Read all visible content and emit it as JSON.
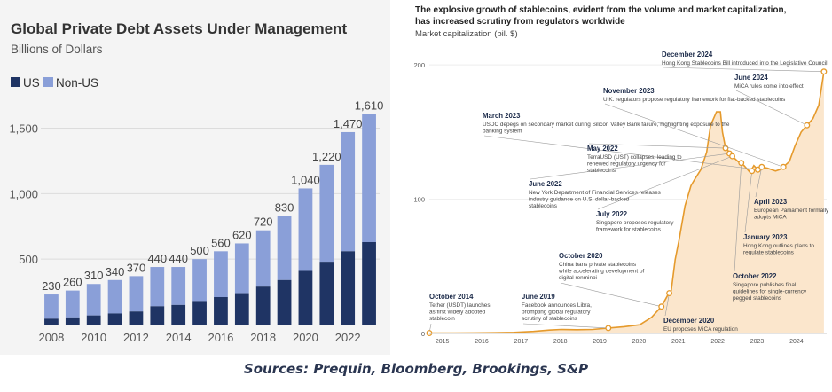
{
  "source_note": "Sources: Prequin, Bloomberg, Brookings, S&P",
  "chart_data": [
    {
      "type": "bar",
      "title": "Global Private Debt Assets Under Management",
      "subtitle": "Billions of Dollars",
      "legend": [
        "US",
        "Non-US"
      ],
      "colors": {
        "us": "#1f3464",
        "non_us": "#8a9fd8"
      },
      "categories": [
        "2008",
        "2009",
        "2010",
        "2011",
        "2012",
        "2013",
        "2014",
        "2015",
        "2016",
        "2017",
        "2018",
        "2019",
        "2020",
        "2021",
        "2022",
        "2023"
      ],
      "x_tick_labels": [
        "2008",
        "2010",
        "2012",
        "2014",
        "2016",
        "2018",
        "2020",
        "2022"
      ],
      "y_tick_labels": [
        "500",
        "1,000",
        "1,500"
      ],
      "y_ticks": [
        500,
        1000,
        1500
      ],
      "ylim": [
        0,
        1700
      ],
      "total_labels": [
        "230",
        "260",
        "310",
        "340",
        "370",
        "440",
        "440",
        "500",
        "560",
        "620",
        "720",
        "830",
        "1,040",
        "1,220",
        "1,470",
        "1,610"
      ],
      "series": [
        {
          "name": "US",
          "values": [
            45,
            55,
            70,
            85,
            100,
            140,
            150,
            180,
            210,
            240,
            290,
            340,
            410,
            480,
            560,
            630
          ]
        },
        {
          "name": "Non-US",
          "values": [
            185,
            205,
            240,
            255,
            270,
            300,
            290,
            320,
            350,
            380,
            430,
            490,
            630,
            740,
            910,
            980
          ]
        }
      ]
    },
    {
      "type": "area",
      "title": "The explosive growth of stablecoins, evident from the volume and market capitalization, has increased scrutiny from regulators worldwide",
      "ylabel": "Market capitalization (bil. $)",
      "ylim": [
        0,
        210
      ],
      "y_ticks": [
        0,
        100,
        200
      ],
      "y_tick_labels": [
        "0",
        "100",
        "200"
      ],
      "xlim": [
        2014.85,
        2024.95
      ],
      "x_ticks": [
        2015,
        2016,
        2017,
        2018,
        2019,
        2020,
        2021,
        2022,
        2023,
        2024
      ],
      "x_tick_labels": [
        "2015",
        "2016",
        "2017",
        "2018",
        "2019",
        "2020",
        "2021",
        "2022",
        "2023",
        "2024"
      ],
      "colors": {
        "line": "#e59a2c",
        "fill": "#fbe6cc"
      },
      "series": [
        {
          "name": "Stablecoin market cap",
          "x": [
            2014.85,
            2015.5,
            2016.0,
            2016.5,
            2017.0,
            2017.5,
            2017.9,
            2018.2,
            2018.6,
            2019.0,
            2019.4,
            2019.8,
            2020.2,
            2020.5,
            2020.75,
            2020.9,
            2021.0,
            2021.1,
            2021.2,
            2021.35,
            2021.5,
            2021.6,
            2021.75,
            2021.9,
            2022.0,
            2022.15,
            2022.25,
            2022.3,
            2022.38,
            2022.45,
            2022.55,
            2022.7,
            2022.85,
            2023.0,
            2023.1,
            2023.2,
            2023.3,
            2023.45,
            2023.55,
            2023.65,
            2023.75,
            2023.85,
            2024.0,
            2024.15,
            2024.3,
            2024.45,
            2024.6,
            2024.75,
            2024.88
          ],
          "y": [
            0.3,
            0.3,
            0.4,
            0.5,
            0.8,
            1.5,
            2.5,
            3.0,
            2.8,
            3.0,
            4.0,
            5.0,
            6.5,
            12,
            20,
            28,
            32,
            55,
            70,
            95,
            110,
            115,
            122,
            135,
            155,
            165,
            165,
            150,
            138,
            136,
            132,
            128,
            125,
            120,
            125,
            122,
            124,
            123,
            122,
            121,
            122,
            124,
            128,
            140,
            150,
            155,
            160,
            170,
            195
          ]
        }
      ],
      "annotations": [
        {
          "id": "oct2014",
          "date": "October 2014",
          "text": "Tether (USDT) launches as first widely adopted stablecoin",
          "x": 2014.85,
          "y": 0.3
        },
        {
          "id": "jun2019",
          "date": "June 2019",
          "text": "Facebook announces Libra, prompting global regulatory scrutiny of stablecoins",
          "x": 2019.4,
          "y": 4
        },
        {
          "id": "oct2020",
          "date": "October 2020",
          "text": "China bans private stablecoins while accelerating development of digital renminbi",
          "x": 2020.75,
          "y": 20
        },
        {
          "id": "dec2020",
          "date": "December 2020",
          "text": "EU proposes MiCA regulation",
          "x": 2020.95,
          "y": 30
        },
        {
          "id": "mar2023",
          "date": "March 2023",
          "text": "USDC depegs on secondary market during Silicon Valley Bank failure, highlighting exposure to the banking system",
          "x": 2023.2,
          "y": 122
        },
        {
          "id": "may2022",
          "date": "May 2022",
          "text": "TerraUSD (UST) collapses, leading to renewed regulatory urgency for stablecoins",
          "x": 2022.38,
          "y": 138
        },
        {
          "id": "jun2022",
          "date": "June 2022",
          "text": "New York Department of Financial Services releases industry guidance on U.S. dollar-backed stablecoins",
          "x": 2022.48,
          "y": 134
        },
        {
          "id": "jul2022",
          "date": "July 2022",
          "text": "Singapore proposes regulatory framework for stablecoins",
          "x": 2022.55,
          "y": 132
        },
        {
          "id": "nov2023",
          "date": "November 2023",
          "text": "U.K. regulators propose regulatory framework for fiat-backed stablecoins",
          "x": 2023.85,
          "y": 124
        },
        {
          "id": "dec2024",
          "date": "December 2024",
          "text": "Hong Kong Stablecoins Bill introduced into the Legislative Council",
          "x": 2024.88,
          "y": 195
        },
        {
          "id": "jun2024",
          "date": "June 2024",
          "text": "MiCA rules come into effect",
          "x": 2024.45,
          "y": 155
        },
        {
          "id": "apr2023",
          "date": "April 2023",
          "text": "European Parliament formally adopts MiCA",
          "x": 2023.3,
          "y": 124
        },
        {
          "id": "jan2023",
          "date": "January 2023",
          "text": "Hong Kong outlines plans to regulate stablecoins",
          "x": 2023.05,
          "y": 121
        },
        {
          "id": "oct2022",
          "date": "October 2022",
          "text": "Singapore publishes final guidelines for single-currency pegged stablecoins",
          "x": 2022.78,
          "y": 127
        }
      ]
    }
  ]
}
